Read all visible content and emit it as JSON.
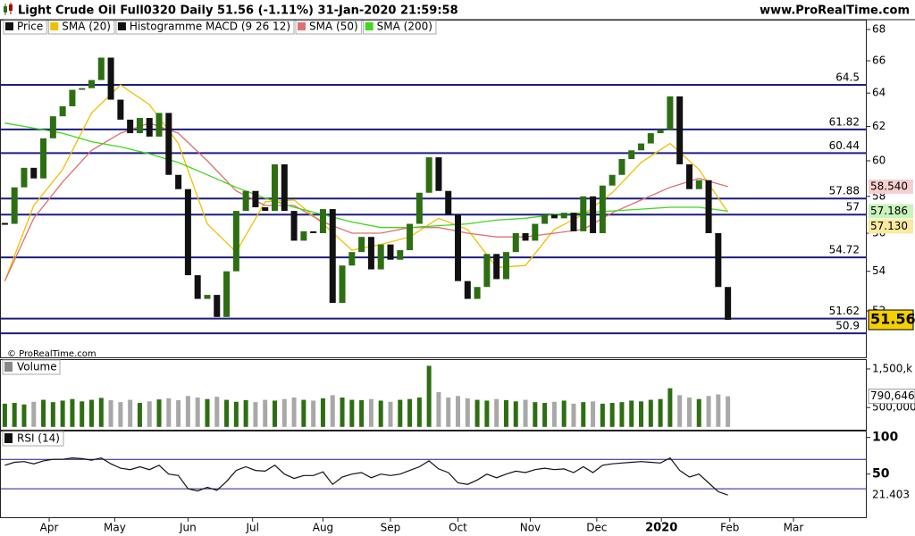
{
  "header": {
    "title": "Light Crude Oil Full0320 Daily 51.56 (-1.11%) 31-Jan-2020 21:59:58",
    "site": "www.ProRealTime.com"
  },
  "copyright": "© ProRealTime.com",
  "chart_data": [
    {
      "type": "candlestick",
      "log": true,
      "xlim": [
        -0.5,
        89.4
      ],
      "ylim": [
        50.26,
        68.64
      ],
      "yticks": [
        52,
        54,
        56,
        58,
        60,
        62,
        64,
        66,
        68
      ],
      "levels": [
        64.5,
        61.82,
        60.44,
        57.88,
        57,
        54.72,
        51.62,
        50.9
      ],
      "level_color": "#1c1c80",
      "up_color": "#2d6e12",
      "down_color": "#111111",
      "series": [
        {
          "name": "Price",
          "color": "#111111",
          "values": [
            56.5,
            58.5,
            59.6,
            59,
            61.3,
            62.6,
            63.2,
            64.2,
            64.3,
            64.8,
            66.2,
            63.6,
            62.4,
            61.6,
            62.5,
            61.4,
            62.8,
            59.2,
            58.4,
            53.8,
            52.6,
            52.8,
            51.7,
            54,
            57.2,
            58.3,
            57.4,
            57.2,
            59.8,
            57.2,
            55.6,
            56.1,
            56,
            57.3,
            52.4,
            54.3,
            55,
            55.8,
            54.1,
            55.4,
            54.6,
            55.1,
            56.5,
            58.2,
            60.2,
            58.3,
            57,
            53.5,
            52.6,
            53.2,
            54.9,
            53.6,
            55,
            56,
            55.6,
            56.5,
            57,
            56.8,
            57.1,
            56.1,
            58,
            56,
            58.6,
            59.2,
            60.1,
            60.6,
            61,
            61.6,
            61.8,
            63.8,
            59.8,
            58.4,
            58.9,
            56,
            53.2,
            51.56
          ],
          "box_color": "#f5d000"
        },
        {
          "name": "SMA (20)",
          "color": "#f0c000",
          "x": [
            0,
            3,
            6,
            9,
            12,
            15,
            18,
            21,
            24,
            27,
            30,
            33,
            36,
            39,
            42,
            45,
            48,
            51,
            54,
            57,
            60,
            63,
            66,
            69,
            72,
            75
          ],
          "values": [
            53.5,
            57.5,
            59.5,
            62.8,
            64.5,
            63.3,
            61,
            56.5,
            55,
            57.7,
            57.8,
            56.5,
            55.1,
            55.4,
            55.8,
            56.8,
            56.2,
            54.2,
            54.3,
            56.2,
            57,
            58.2,
            59.9,
            61,
            59.5,
            57.13
          ],
          "last_label": "57.130",
          "box_color": "#fbe9a0"
        },
        {
          "name": "Histogramme MACD (9 26 12)",
          "color": "#111111"
        },
        {
          "name": "SMA (50)",
          "color": "#e07070",
          "x": [
            0,
            3,
            6,
            9,
            12,
            15,
            18,
            21,
            24,
            27,
            30,
            33,
            36,
            39,
            42,
            45,
            48,
            51,
            54,
            57,
            60,
            63,
            66,
            69,
            72,
            75
          ],
          "values": [
            53.5,
            56.8,
            58.8,
            60.6,
            61.6,
            62.2,
            61.6,
            60,
            58.3,
            57.5,
            57.5,
            56.6,
            56,
            56,
            56.3,
            56.3,
            56,
            55.8,
            55.8,
            56,
            56.2,
            57.1,
            57.8,
            58.5,
            59,
            58.54
          ],
          "last_label": "58.540",
          "box_color": "#f6d0d0"
        },
        {
          "name": "SMA (200)",
          "color": "#3fd81c",
          "x": [
            0,
            3,
            6,
            9,
            12,
            15,
            18,
            21,
            24,
            27,
            30,
            33,
            36,
            39,
            42,
            45,
            48,
            51,
            54,
            57,
            60,
            63,
            66,
            69,
            72,
            75
          ],
          "values": [
            62.2,
            61.9,
            61.6,
            61.1,
            60.8,
            60.4,
            59.9,
            59.2,
            58.5,
            57.9,
            57.4,
            57,
            56.6,
            56.3,
            56.3,
            56.4,
            56.5,
            56.7,
            56.8,
            57,
            57.1,
            57.2,
            57.3,
            57.4,
            57.4,
            57.186
          ],
          "box_color": "#c9f3bd"
        }
      ]
    },
    {
      "type": "bar",
      "title": "Volume",
      "xlim": [
        -0.5,
        89.4
      ],
      "ylim": [
        -50000,
        1800000
      ],
      "yticks": [
        {
          "value": 500000,
          "label": "500,000"
        },
        {
          "value": 1500000,
          "label": "1,500,k"
        }
      ],
      "up_color": "#2d6e12",
      "down_color": "#a8a8a8",
      "values": [
        600000,
        620000,
        580000,
        650000,
        700000,
        640000,
        680000,
        720000,
        660000,
        700000,
        750000,
        690000,
        640000,
        700000,
        620000,
        660000,
        710000,
        740000,
        690000,
        800000,
        760000,
        720000,
        780000,
        700000,
        650000,
        690000,
        640000,
        700000,
        680000,
        720000,
        760000,
        700000,
        680000,
        740000,
        820000,
        760000,
        700000,
        690000,
        720000,
        680000,
        650000,
        700000,
        720000,
        760000,
        1580000,
        900000,
        760000,
        800000,
        740000,
        700000,
        680000,
        720000,
        690000,
        660000,
        700000,
        640000,
        620000,
        650000,
        680000,
        600000,
        640000,
        660000,
        600000,
        620000,
        640000,
        680000,
        660000,
        700000,
        720000,
        1000000,
        820000,
        760000,
        720000,
        800000,
        840000,
        790646
      ],
      "last_label": "790,646"
    },
    {
      "type": "line",
      "title": "RSI (14)",
      "xlim": [
        -0.5,
        89.4
      ],
      "ylim": [
        -10,
        108
      ],
      "yticks": [
        50,
        100
      ],
      "levels": [
        70,
        30
      ],
      "level_color": "#1c1c80",
      "color": "#111111",
      "values": [
        62,
        66,
        67,
        64,
        68,
        70,
        70,
        72,
        71,
        69,
        72,
        64,
        58,
        56,
        60,
        56,
        62,
        50,
        48,
        30,
        27,
        32,
        28,
        40,
        55,
        60,
        55,
        54,
        62,
        50,
        44,
        48,
        48,
        53,
        36,
        46,
        50,
        52,
        45,
        50,
        48,
        50,
        55,
        60,
        68,
        57,
        52,
        38,
        36,
        42,
        50,
        45,
        50,
        54,
        52,
        56,
        58,
        56,
        57,
        52,
        60,
        52,
        62,
        64,
        65,
        66,
        67,
        66,
        65,
        72,
        55,
        46,
        50,
        38,
        26,
        21.403
      ],
      "xticks": [
        {
          "value": 4.6,
          "label": "Apr"
        },
        {
          "value": 11.4,
          "label": "May"
        },
        {
          "value": 19,
          "label": "Jun"
        },
        {
          "value": 25.7,
          "label": "Jul"
        },
        {
          "value": 33,
          "label": "Aug"
        },
        {
          "value": 40,
          "label": "Sep"
        },
        {
          "value": 47,
          "label": "Oct"
        },
        {
          "value": 54.5,
          "label": "Nov"
        },
        {
          "value": 61.4,
          "label": "Dec"
        },
        {
          "value": 68.1,
          "label": "2020",
          "bold": true
        },
        {
          "value": 75.2,
          "label": "Feb"
        },
        {
          "value": 81.8,
          "label": "Mar"
        }
      ]
    }
  ]
}
